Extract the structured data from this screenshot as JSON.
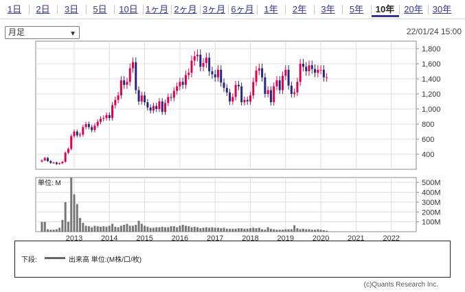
{
  "tabs": [
    "1日",
    "2日",
    "3日",
    "5日",
    "10日",
    "1ヶ月",
    "2ヶ月",
    "3ヶ月",
    "6ヶ月",
    "1年",
    "2年",
    "3年",
    "5年",
    "10年",
    "20年",
    "30年"
  ],
  "active_tab": "10年",
  "period_select": {
    "value": "月足"
  },
  "timestamp": "22/01/24 15:00",
  "volume_unit_label": "単位: M",
  "legend": {
    "label": "下段:",
    "series": "出来高 単位:(M株/口/枚)"
  },
  "copyright": "(c)Quants Research Inc.",
  "colors": {
    "up": "#e0004d",
    "down": "#262680",
    "volume": "#777777",
    "tab_active": "#333399"
  },
  "chart_data": [
    {
      "type": "candlestick",
      "title": "",
      "frequency": "monthly",
      "ylim": [
        200,
        1900
      ],
      "yticks": [
        400,
        600,
        800,
        1000,
        1200,
        1400,
        1600,
        1800
      ],
      "ytick_labels": [
        "400",
        "600",
        "800",
        "1,000",
        "1,200",
        "1,400",
        "1,600",
        "1,800"
      ],
      "grid": true,
      "x_start": "2012-02",
      "closes": [
        320,
        350,
        310,
        285,
        290,
        270,
        280,
        300,
        420,
        470,
        640,
        700,
        650,
        660,
        760,
        800,
        760,
        720,
        780,
        830,
        870,
        880,
        920,
        880,
        1050,
        1120,
        1180,
        1380,
        1320,
        1360,
        1540,
        1620,
        1250,
        1100,
        1180,
        1090,
        1020,
        980,
        1040,
        1000,
        1100,
        960,
        1080,
        1160,
        1150,
        1240,
        1300,
        1360,
        1320,
        1450,
        1480,
        1640,
        1700,
        1720,
        1560,
        1610,
        1680,
        1500,
        1460,
        1420,
        1520,
        1350,
        1280,
        1220,
        1100,
        1160,
        1320,
        1300,
        1090,
        1120,
        1100,
        1180,
        1360,
        1510,
        1540,
        1420,
        1200,
        1250,
        1090,
        1300,
        1380,
        1250,
        1440,
        1520,
        1310,
        1200,
        1220,
        1360,
        1600,
        1560,
        1500,
        1580,
        1530,
        1480,
        1520,
        1520,
        1420,
        1420
      ]
    },
    {
      "type": "bar",
      "title": "",
      "ylabel": "単位: M",
      "ylim": [
        0,
        550
      ],
      "yticks": [
        100,
        200,
        300,
        400,
        500
      ],
      "ytick_labels": [
        "100M",
        "200M",
        "300M",
        "400M",
        "500M"
      ],
      "x_labels": [
        "2013",
        "2014",
        "2015",
        "2016",
        "2017",
        "2018",
        "2019",
        "2020",
        "2021",
        "2022"
      ],
      "values": [
        100,
        100,
        25,
        20,
        20,
        25,
        40,
        120,
        300,
        100,
        550,
        380,
        280,
        140,
        90,
        60,
        55,
        45,
        60,
        55,
        50,
        55,
        50,
        60,
        80,
        50,
        45,
        60,
        70,
        80,
        60,
        60,
        70,
        110,
        80,
        60,
        50,
        40,
        40,
        45,
        45,
        50,
        45,
        45,
        55,
        55,
        45,
        60,
        70,
        60,
        55,
        45,
        50,
        45,
        35,
        40,
        45,
        40,
        45,
        40,
        40,
        35,
        40,
        30,
        30,
        30,
        30,
        35,
        35,
        30,
        30,
        35,
        40,
        35,
        40,
        25,
        20,
        45,
        30,
        25,
        20,
        20,
        20,
        25,
        25,
        25,
        65,
        35,
        25,
        30,
        25,
        25,
        20,
        20,
        25,
        20,
        15,
        10
      ]
    }
  ]
}
